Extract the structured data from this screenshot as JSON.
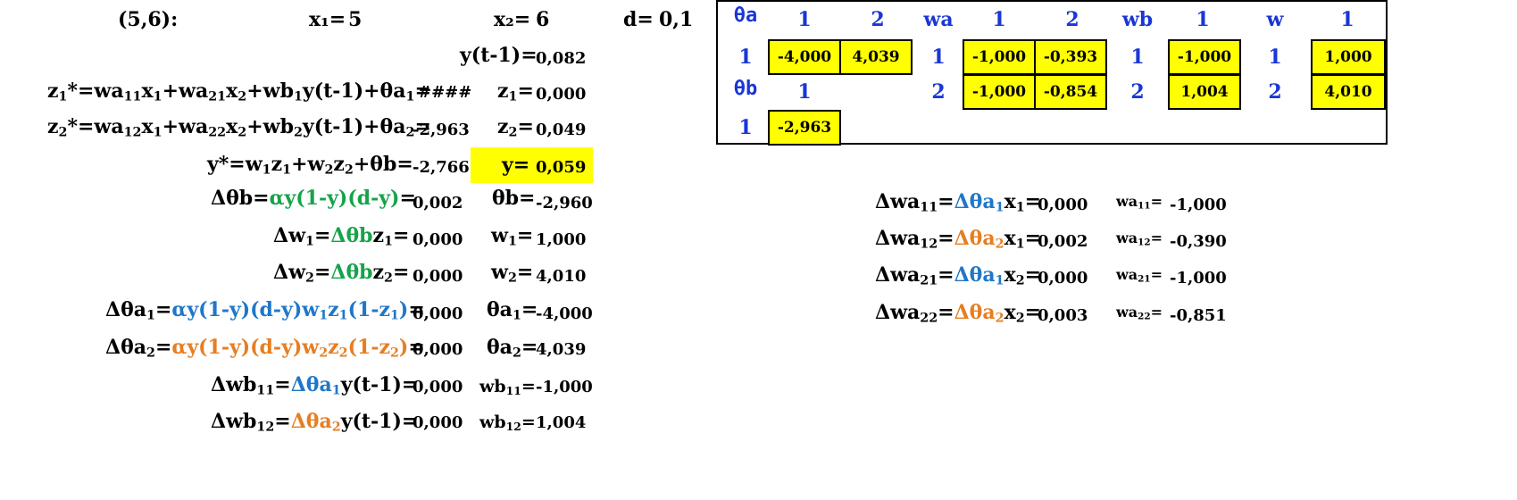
{
  "header": {
    "pair": "(5,6):",
    "x1_label": "x₁=",
    "x1_value": "5",
    "x2_label": "x₂=",
    "x2_value": "6",
    "d_label": "d=",
    "d_value": "0,1"
  },
  "left": {
    "y_prev_label": "y(t-1)=",
    "y_prev_value": "0,082",
    "z1_star_value": "####",
    "z1_value": "0,000",
    "z2_star_value": "-2,963",
    "z2_value": "0,049",
    "y_star_value": "-2,766",
    "y_value": "0,059",
    "d_theta_b_value": "0,002",
    "theta_b_value": "-2,960",
    "dw1_value": "0,000",
    "w1_value": "1,000",
    "dw2_value": "0,000",
    "w2_value": "4,010",
    "d_theta_a1_value": "0,000",
    "theta_a1_value": "-4,000",
    "d_theta_a2_value": "0,000",
    "theta_a2_value": "4,039",
    "dwb11_value": "0,000",
    "wb11_value": "-1,000",
    "dwb12_value": "0,000",
    "wb12_value": "1,004"
  },
  "table": {
    "theta_a_header": "θa",
    "wa_header": "wa",
    "wb_header": "wb",
    "w_header": "w",
    "theta_b_header": "θb",
    "col1": "1",
    "col2": "2",
    "row1": "1",
    "row2": "2",
    "theta_a": [
      "-4,000",
      "4,039"
    ],
    "wa_row1": [
      "-1,000",
      "-0,393"
    ],
    "wa_row2": [
      "-1,000",
      "-0,854"
    ],
    "wb": [
      "-1,000",
      "1,004"
    ],
    "w": [
      "1,000",
      "4,010"
    ],
    "theta_b": "-2,963"
  },
  "right": {
    "dwa11_value": "0,000",
    "wa11_value": "-1,000",
    "dwa12_value": "0,002",
    "wa12_value": "-0,390",
    "dwa21_value": "0,000",
    "wa21_value": "-1,000",
    "dwa22_value": "0,003",
    "wa22_value": "-0,851"
  },
  "colors": {
    "highlight": "#ffff00",
    "green": "#16a34a",
    "blue": "#1f77c8",
    "orange": "#e67e22",
    "table_header": "#1a36d6"
  }
}
